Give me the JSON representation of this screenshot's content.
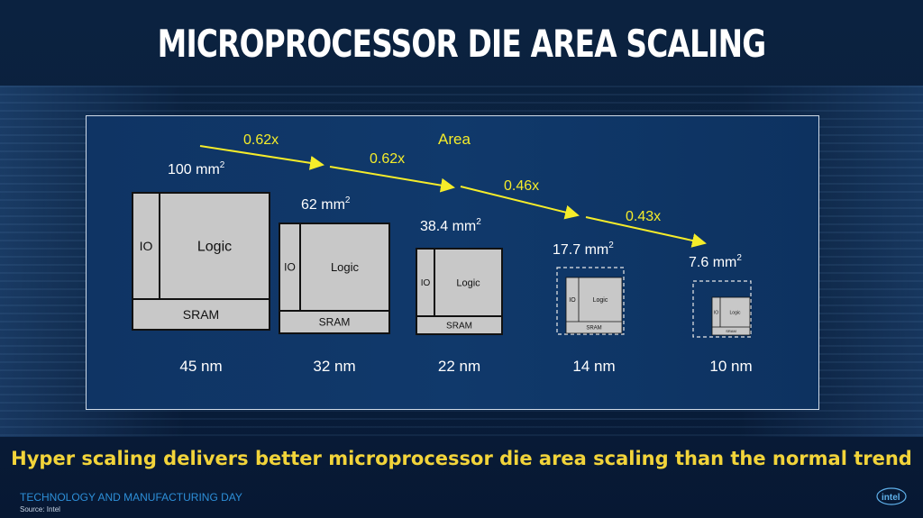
{
  "title": "MICROPROCESSOR DIE AREA SCALING",
  "area_label": "Area",
  "steps": [
    {
      "node": "45 nm",
      "area": "100 mm",
      "io": "IO",
      "logic": "Logic",
      "sram": "SRAM",
      "dashed": false
    },
    {
      "node": "32 nm",
      "area": "62 mm",
      "io": "IO",
      "logic": "Logic",
      "sram": "SRAM",
      "dashed": false
    },
    {
      "node": "22 nm",
      "area": "38.4 mm",
      "io": "IO",
      "logic": "Logic",
      "sram": "SRAM",
      "dashed": false
    },
    {
      "node": "14 nm",
      "area": "17.7 mm",
      "io": "IO",
      "logic": "Logic",
      "sram": "SRAM",
      "dashed": true
    },
    {
      "node": "10 nm",
      "area": "7.6 mm",
      "io": "IO",
      "logic": "Logic",
      "sram": "SRAM",
      "dashed": true
    }
  ],
  "area_unit_superscript": "2",
  "factors": [
    "0.62x",
    "0.62x",
    "0.46x",
    "0.43x"
  ],
  "headline": "Hyper scaling delivers better microprocessor die area scaling than the normal trend",
  "footer": "TECHNOLOGY AND MANUFACTURING DAY",
  "source": "Source: Intel",
  "logo_text": "intel",
  "colors": {
    "accent": "#f2d43a",
    "arrow": "#f5ec2a",
    "block": "#c8c8c8"
  }
}
